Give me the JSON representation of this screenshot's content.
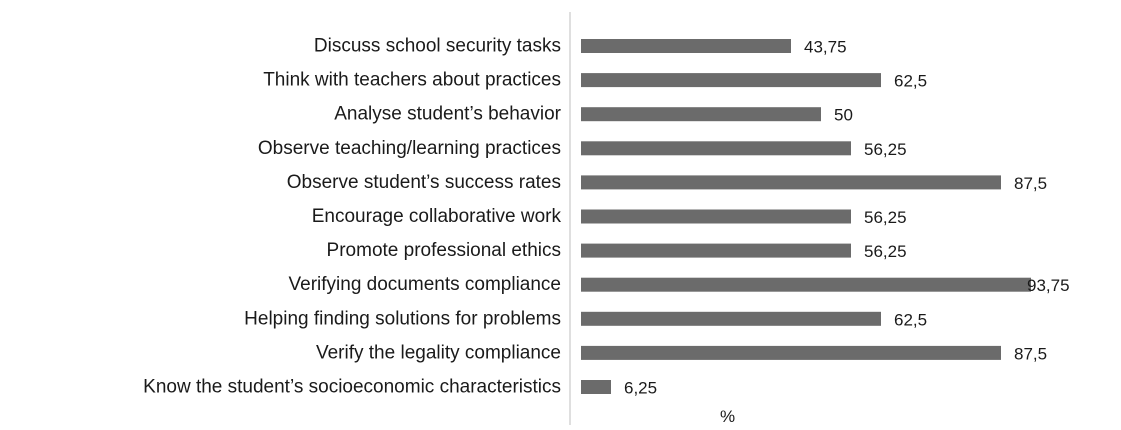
{
  "chart_data": {
    "type": "bar",
    "orientation": "horizontal",
    "categories": [
      "Discuss school security tasks",
      "Think with teachers about practices",
      "Analyse student’s behavior",
      "Observe teaching/learning practices",
      "Observe student’s success rates",
      "Encourage collaborative work",
      "Promote professional ethics",
      "Verifying documents compliance",
      "Helping finding solutions for problems",
      "Verify the legality compliance",
      "Know the student’s socioeconomic characteristics"
    ],
    "values": [
      43.75,
      62.5,
      50,
      56.25,
      87.5,
      56.25,
      56.25,
      93.75,
      62.5,
      87.5,
      6.25
    ],
    "value_labels": [
      "43,75",
      "62,5",
      "50",
      "56,25",
      "87,5",
      "56,25",
      "56,25",
      "93,75",
      "62,5",
      "87,5",
      "6,25"
    ],
    "xlabel": "%",
    "ylabel": "",
    "title": "",
    "xlim": [
      0,
      100
    ],
    "grid": false,
    "legend": "none",
    "bar_color": "#6b6b6b",
    "axis_color": "#bfbfbf"
  }
}
